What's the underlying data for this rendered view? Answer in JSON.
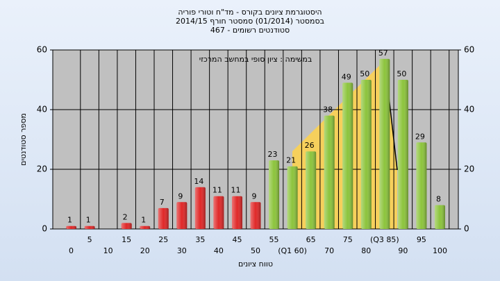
{
  "chart_data": {
    "type": "bar",
    "title": "היסטוגרמת ציונים בקורס - מד\"ח וטורי פוריה",
    "subtitle": "בסמסטר  (01/2014)  סמסטר חורף 2014/15",
    "subtitle2": "סטודנטים רשומים - 467",
    "annotation": "במשימה : ציון סופי במחשב המרכזי",
    "x_label": "טווח ציונים",
    "y_label": "מספר סטודנטים",
    "categories": [
      "0",
      "5",
      "10",
      "15",
      "20",
      "25",
      "30",
      "35",
      "40",
      "45",
      "50",
      "55",
      "(Q1 60)",
      "65",
      "70",
      "75",
      "80",
      "(Q3 85)",
      "90",
      "95",
      "100"
    ],
    "values": [
      1,
      1,
      null,
      2,
      1,
      7,
      9,
      14,
      11,
      11,
      9,
      23,
      21,
      26,
      38,
      49,
      50,
      57,
      50,
      29,
      8
    ],
    "colors": [
      "#e02828",
      "#e02828",
      "#e02828",
      "#e02828",
      "#e02828",
      "#e02828",
      "#e02828",
      "#e02828",
      "#e02828",
      "#e02828",
      "#e02828",
      "#8cc43c",
      "#8cc43c",
      "#8cc43c",
      "#8cc43c",
      "#8cc43c",
      "#8cc43c",
      "#8cc43c",
      "#8cc43c",
      "#8cc43c",
      "#8cc43c"
    ],
    "ylim": [
      0,
      60
    ],
    "yticks": [
      0,
      20,
      40,
      60
    ],
    "y2lim": [
      0,
      60
    ],
    "y2ticks": [
      0,
      20,
      40,
      60
    ],
    "grid": true
  }
}
